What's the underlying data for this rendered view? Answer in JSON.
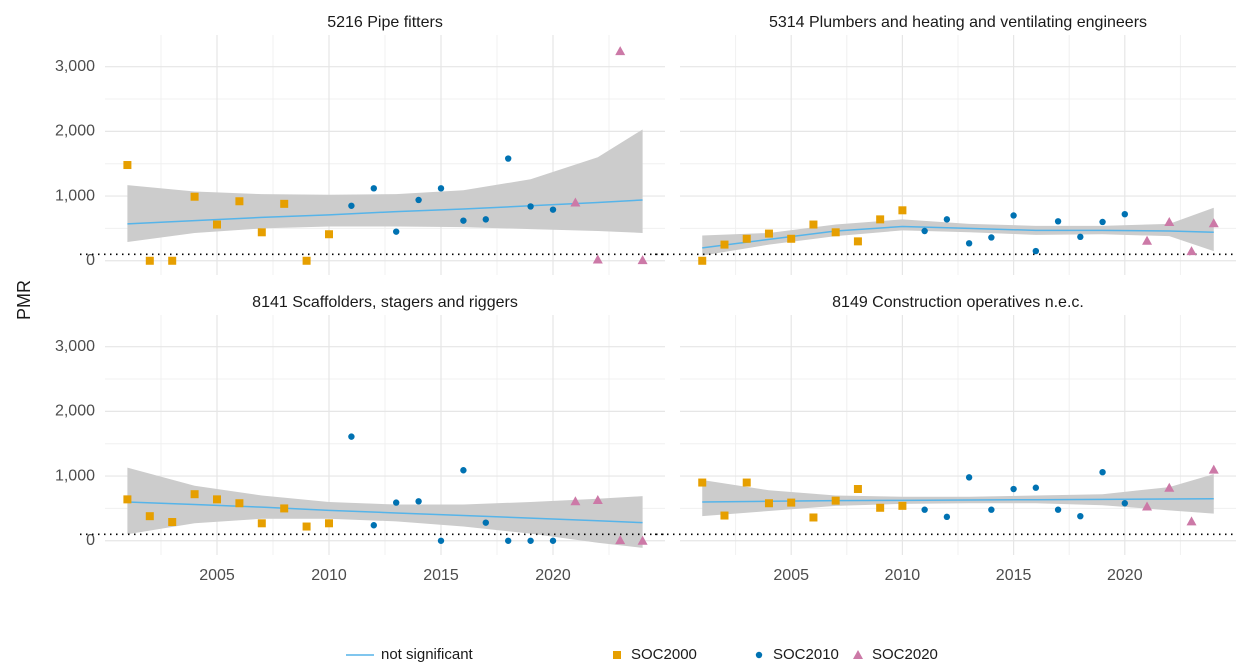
{
  "chart_data": [
    {
      "type": "scatter",
      "title": "5216 Pipe fitters",
      "ylabel": "PMR",
      "x": [
        2001,
        2002,
        2003,
        2004,
        2005,
        2006,
        2007,
        2008,
        2009,
        2010,
        2011,
        2012,
        2013,
        2014,
        2015,
        2016,
        2017,
        2018,
        2019,
        2020,
        2021,
        2022,
        2023,
        2024
      ],
      "xlim": [
        2000,
        2025
      ],
      "xticks": [
        2005,
        2010,
        2015,
        2020
      ],
      "xminor": [
        2002.5,
        2007.5,
        2012.5,
        2017.5,
        2022.5
      ],
      "ylim": [
        -220,
        3490
      ],
      "yticks": [
        0,
        {
          "value": 1000,
          "label": "1,000"
        },
        {
          "value": 2000,
          "label": "2,000"
        },
        {
          "value": 3000,
          "label": "3,000"
        }
      ],
      "yminor": [
        500,
        1500,
        2500
      ],
      "hline": 100,
      "grid": true,
      "series": [
        {
          "name": "SOC2000",
          "color": "#E69F00",
          "shape": "square",
          "values": [
            1480,
            0,
            0,
            990,
            560,
            920,
            440,
            880,
            0,
            410,
            null,
            null,
            null,
            null,
            null,
            null,
            null,
            null,
            null,
            null,
            null,
            null,
            null,
            null
          ]
        },
        {
          "name": "SOC2010",
          "color": "#0072B2",
          "shape": "circle",
          "values": [
            null,
            null,
            null,
            null,
            null,
            null,
            null,
            null,
            null,
            null,
            850,
            1120,
            450,
            940,
            1120,
            620,
            640,
            1580,
            840,
            790,
            null,
            null,
            null,
            null
          ]
        },
        {
          "name": "SOC2020",
          "color": "#CC79A7",
          "shape": "triangle",
          "values": [
            null,
            null,
            null,
            null,
            null,
            null,
            null,
            null,
            null,
            null,
            null,
            null,
            null,
            null,
            null,
            null,
            null,
            null,
            null,
            null,
            900,
            20,
            3240,
            10
          ]
        }
      ],
      "fit": {
        "name": "not significant",
        "color": "#56B4E9",
        "band_color": "#cccccc",
        "x": [
          2001,
          2004,
          2007,
          2010,
          2013,
          2016,
          2019,
          2022,
          2024
        ],
        "values": [
          570,
          620,
          670,
          710,
          760,
          800,
          850,
          900,
          940
        ],
        "lower": [
          290,
          430,
          500,
          530,
          530,
          520,
          490,
          460,
          430
        ],
        "upper": [
          1170,
          1070,
          1030,
          1020,
          1030,
          1090,
          1260,
          1600,
          2030
        ]
      }
    },
    {
      "type": "scatter",
      "title": "5314 Plumbers and heating and ventilating engineers",
      "x": [
        2001,
        2002,
        2003,
        2004,
        2005,
        2006,
        2007,
        2008,
        2009,
        2010,
        2011,
        2012,
        2013,
        2014,
        2015,
        2016,
        2017,
        2018,
        2019,
        2020,
        2021,
        2022,
        2023,
        2024
      ],
      "xlim": [
        2000,
        2025
      ],
      "xticks": [
        2005,
        2010,
        2015,
        2020
      ],
      "xminor": [
        2002.5,
        2007.5,
        2012.5,
        2017.5,
        2022.5
      ],
      "ylim": [
        -220,
        3490
      ],
      "yticks": [
        0,
        {
          "value": 1000,
          "label": "1,000"
        },
        {
          "value": 2000,
          "label": "2,000"
        },
        {
          "value": 3000,
          "label": "3,000"
        }
      ],
      "yminor": [
        500,
        1500,
        2500
      ],
      "hline": 100,
      "grid": true,
      "series": [
        {
          "name": "SOC2000",
          "color": "#E69F00",
          "shape": "square",
          "values": [
            0,
            250,
            340,
            420,
            340,
            560,
            440,
            300,
            640,
            780,
            null,
            null,
            null,
            null,
            null,
            null,
            null,
            null,
            null,
            null,
            null,
            null,
            null,
            null
          ]
        },
        {
          "name": "SOC2010",
          "color": "#0072B2",
          "shape": "circle",
          "values": [
            null,
            null,
            null,
            null,
            null,
            null,
            null,
            null,
            null,
            null,
            460,
            640,
            270,
            360,
            700,
            150,
            610,
            370,
            600,
            720,
            null,
            null,
            null,
            null
          ]
        },
        {
          "name": "SOC2020",
          "color": "#CC79A7",
          "shape": "triangle",
          "values": [
            null,
            null,
            null,
            null,
            null,
            null,
            null,
            null,
            null,
            null,
            null,
            null,
            null,
            null,
            null,
            null,
            null,
            null,
            null,
            null,
            310,
            600,
            150,
            580
          ]
        }
      ],
      "fit": {
        "name": "not significant",
        "color": "#56B4E9",
        "band_color": "#cccccc",
        "x": [
          2001,
          2004,
          2007,
          2010,
          2013,
          2016,
          2019,
          2022,
          2024
        ],
        "values": [
          200,
          330,
          460,
          530,
          500,
          470,
          470,
          460,
          440
        ],
        "lower": [
          80,
          250,
          380,
          470,
          440,
          400,
          410,
          380,
          150
        ],
        "upper": [
          390,
          430,
          560,
          640,
          570,
          540,
          540,
          570,
          820
        ]
      }
    },
    {
      "type": "scatter",
      "title": "8141 Scaffolders, stagers and riggers",
      "x": [
        2001,
        2002,
        2003,
        2004,
        2005,
        2006,
        2007,
        2008,
        2009,
        2010,
        2011,
        2012,
        2013,
        2014,
        2015,
        2016,
        2017,
        2018,
        2019,
        2020,
        2021,
        2022,
        2023,
        2024
      ],
      "xlim": [
        2000,
        2025
      ],
      "xticks": [
        2005,
        2010,
        2015,
        2020
      ],
      "xminor": [
        2002.5,
        2007.5,
        2012.5,
        2017.5,
        2022.5
      ],
      "ylim": [
        -220,
        3490
      ],
      "yticks": [
        0,
        {
          "value": 1000,
          "label": "1,000"
        },
        {
          "value": 2000,
          "label": "2,000"
        },
        {
          "value": 3000,
          "label": "3,000"
        }
      ],
      "yminor": [
        500,
        1500,
        2500
      ],
      "hline": 100,
      "grid": true,
      "series": [
        {
          "name": "SOC2000",
          "color": "#E69F00",
          "shape": "square",
          "values": [
            640,
            380,
            290,
            720,
            640,
            580,
            270,
            500,
            220,
            270,
            null,
            null,
            null,
            null,
            null,
            null,
            null,
            null,
            null,
            null,
            null,
            null,
            null,
            null
          ]
        },
        {
          "name": "SOC2010",
          "color": "#0072B2",
          "shape": "circle",
          "values": [
            null,
            null,
            null,
            null,
            null,
            null,
            null,
            null,
            null,
            null,
            1610,
            240,
            590,
            610,
            0,
            1090,
            280,
            0,
            0,
            0,
            null,
            null,
            null,
            null
          ]
        },
        {
          "name": "SOC2020",
          "color": "#CC79A7",
          "shape": "triangle",
          "values": [
            null,
            null,
            null,
            null,
            null,
            null,
            null,
            null,
            null,
            null,
            null,
            null,
            null,
            null,
            null,
            null,
            null,
            null,
            null,
            null,
            610,
            630,
            10,
            0
          ]
        }
      ],
      "fit": {
        "name": "not significant",
        "color": "#56B4E9",
        "band_color": "#cccccc",
        "x": [
          2001,
          2004,
          2007,
          2010,
          2013,
          2016,
          2019,
          2022,
          2024
        ],
        "values": [
          600,
          560,
          520,
          470,
          430,
          390,
          350,
          310,
          280
        ],
        "lower": [
          100,
          270,
          340,
          340,
          300,
          220,
          110,
          -30,
          -110
        ],
        "upper": [
          1130,
          850,
          700,
          600,
          560,
          560,
          600,
          650,
          690
        ]
      }
    },
    {
      "type": "scatter",
      "title": "8149 Construction operatives n.e.c.",
      "x": [
        2001,
        2002,
        2003,
        2004,
        2005,
        2006,
        2007,
        2008,
        2009,
        2010,
        2011,
        2012,
        2013,
        2014,
        2015,
        2016,
        2017,
        2018,
        2019,
        2020,
        2021,
        2022,
        2023,
        2024
      ],
      "xlim": [
        2000,
        2025
      ],
      "xticks": [
        2005,
        2010,
        2015,
        2020
      ],
      "xminor": [
        2002.5,
        2007.5,
        2012.5,
        2017.5,
        2022.5
      ],
      "ylim": [
        -220,
        3490
      ],
      "yticks": [
        0,
        {
          "value": 1000,
          "label": "1,000"
        },
        {
          "value": 2000,
          "label": "2,000"
        },
        {
          "value": 3000,
          "label": "3,000"
        }
      ],
      "yminor": [
        500,
        1500,
        2500
      ],
      "hline": 100,
      "grid": true,
      "series": [
        {
          "name": "SOC2000",
          "color": "#E69F00",
          "shape": "square",
          "values": [
            900,
            390,
            900,
            580,
            590,
            360,
            620,
            800,
            510,
            540,
            null,
            null,
            null,
            null,
            null,
            null,
            null,
            null,
            null,
            null,
            null,
            null,
            null,
            null
          ]
        },
        {
          "name": "SOC2010",
          "color": "#0072B2",
          "shape": "circle",
          "values": [
            null,
            null,
            null,
            null,
            null,
            null,
            null,
            null,
            null,
            null,
            480,
            370,
            980,
            480,
            800,
            820,
            480,
            380,
            1060,
            580,
            null,
            null,
            null,
            null
          ]
        },
        {
          "name": "SOC2020",
          "color": "#CC79A7",
          "shape": "triangle",
          "values": [
            null,
            null,
            null,
            null,
            null,
            null,
            null,
            null,
            null,
            null,
            null,
            null,
            null,
            null,
            null,
            null,
            null,
            null,
            null,
            null,
            530,
            820,
            300,
            1100
          ]
        }
      ],
      "fit": {
        "name": "not significant",
        "color": "#56B4E9",
        "band_color": "#cccccc",
        "x": [
          2001,
          2004,
          2007,
          2010,
          2013,
          2016,
          2019,
          2022,
          2024
        ],
        "values": [
          600,
          610,
          620,
          625,
          630,
          635,
          640,
          645,
          650
        ],
        "lower": [
          380,
          460,
          540,
          570,
          580,
          580,
          550,
          470,
          420
        ],
        "upper": [
          940,
          780,
          700,
          680,
          680,
          700,
          720,
          830,
          1030
        ]
      }
    }
  ]
}
